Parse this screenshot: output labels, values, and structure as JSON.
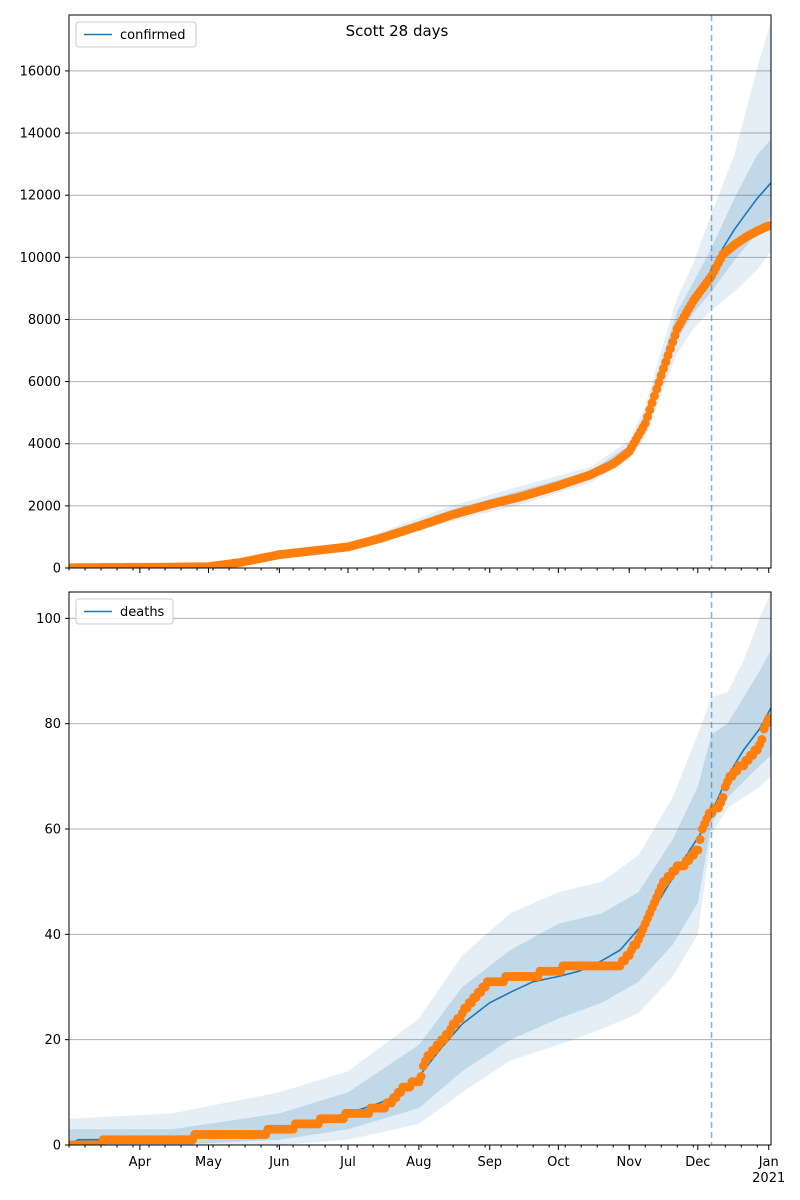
{
  "figure": {
    "title": "Scott 28 days"
  },
  "chart_data": [
    {
      "type": "line",
      "panel": "top",
      "title": "Scott 28 days",
      "legend": {
        "entries": [
          "confirmed"
        ],
        "placement": "top-left"
      },
      "ylim": [
        0,
        17800
      ],
      "y_ticks": [
        0,
        2000,
        4000,
        6000,
        8000,
        10000,
        12000,
        14000,
        16000
      ],
      "grid": "y",
      "forecast_start": "2020-12-07",
      "series": [
        {
          "name": "confirmed",
          "role": "model median",
          "color": "#1f77b4",
          "x": [
            "2020-03-01",
            "2020-04-01",
            "2020-05-01",
            "2020-05-15",
            "2020-06-01",
            "2020-07-01",
            "2020-07-15",
            "2020-08-01",
            "2020-08-15",
            "2020-09-01",
            "2020-09-15",
            "2020-10-01",
            "2020-10-15",
            "2020-10-25",
            "2020-11-01",
            "2020-11-08",
            "2020-11-15",
            "2020-11-22",
            "2020-11-29",
            "2020-12-04",
            "2020-12-07",
            "2020-12-12",
            "2020-12-17",
            "2020-12-22",
            "2020-12-27",
            "2021-01-02"
          ],
          "values": [
            20,
            30,
            50,
            150,
            420,
            680,
            950,
            1380,
            1750,
            2100,
            2350,
            2650,
            3000,
            3350,
            3800,
            4700,
            6300,
            7800,
            8700,
            9200,
            9500,
            10300,
            10900,
            11400,
            11900,
            12400
          ]
        },
        {
          "name": "observed",
          "role": "observed data points",
          "color": "#ff7f0e",
          "x": [
            "2020-03-01",
            "2020-04-01",
            "2020-05-01",
            "2020-05-15",
            "2020-06-01",
            "2020-07-01",
            "2020-07-15",
            "2020-08-01",
            "2020-08-15",
            "2020-09-01",
            "2020-09-15",
            "2020-10-01",
            "2020-10-15",
            "2020-10-25",
            "2020-11-01",
            "2020-11-08",
            "2020-11-15",
            "2020-11-22",
            "2020-11-29",
            "2020-12-04",
            "2020-12-07",
            "2020-12-12",
            "2020-12-17",
            "2020-12-22",
            "2020-12-27",
            "2021-01-02"
          ],
          "values": [
            10,
            20,
            40,
            180,
            430,
            680,
            950,
            1350,
            1700,
            2050,
            2300,
            2650,
            3000,
            3350,
            3750,
            4650,
            6200,
            7700,
            8600,
            9100,
            9400,
            10100,
            10400,
            10650,
            10850,
            11050
          ]
        }
      ],
      "bands": {
        "x": [
          "2020-03-01",
          "2020-05-01",
          "2020-07-01",
          "2020-08-15",
          "2020-09-15",
          "2020-10-15",
          "2020-11-01",
          "2020-11-08",
          "2020-11-15",
          "2020-11-22",
          "2020-11-29",
          "2020-12-07",
          "2020-12-17",
          "2020-12-27",
          "2021-01-02"
        ],
        "outer_low": [
          0,
          20,
          620,
          1500,
          2050,
          2750,
          3500,
          4200,
          5600,
          6900,
          7700,
          8300,
          8900,
          9600,
          10200
        ],
        "outer_high": [
          60,
          100,
          760,
          2000,
          2650,
          3250,
          4100,
          5200,
          7000,
          8700,
          9800,
          11400,
          13300,
          16100,
          17600
        ],
        "inner_low": [
          5,
          35,
          660,
          1630,
          2200,
          2880,
          3650,
          4450,
          5950,
          7350,
          8200,
          8900,
          9900,
          10800,
          11300
        ],
        "inner_high": [
          40,
          70,
          720,
          1870,
          2500,
          3120,
          3950,
          4950,
          6650,
          8250,
          9200,
          10300,
          11900,
          13300,
          13800
        ]
      }
    },
    {
      "type": "line",
      "panel": "bottom",
      "legend": {
        "entries": [
          "deaths"
        ],
        "placement": "top-left"
      },
      "ylim": [
        0,
        105
      ],
      "y_ticks": [
        0,
        20,
        40,
        60,
        80,
        100
      ],
      "grid": "y",
      "forecast_start": "2020-12-07",
      "series": [
        {
          "name": "deaths",
          "role": "model median",
          "color": "#1f77b4",
          "x": [
            "2020-03-01",
            "2020-03-05",
            "2020-04-15",
            "2020-05-05",
            "2020-05-20",
            "2020-06-01",
            "2020-06-10",
            "2020-06-20",
            "2020-07-01",
            "2020-07-15",
            "2020-07-25",
            "2020-08-01",
            "2020-08-10",
            "2020-08-20",
            "2020-09-01",
            "2020-09-10",
            "2020-09-20",
            "2020-10-01",
            "2020-10-10",
            "2020-10-20",
            "2020-10-28",
            "2020-11-05",
            "2020-11-12",
            "2020-11-19",
            "2020-11-26",
            "2020-12-02",
            "2020-12-07",
            "2020-12-14",
            "2020-12-21",
            "2020-12-28",
            "2021-01-02"
          ],
          "values": [
            0,
            1,
            1,
            2,
            2,
            3,
            4,
            5,
            6,
            8,
            10,
            13,
            18,
            23,
            27,
            29,
            31,
            32,
            33,
            35,
            37,
            41,
            45,
            50,
            55,
            59,
            63,
            70,
            75,
            79,
            83
          ]
        },
        {
          "name": "observed",
          "role": "observed data points",
          "color": "#ff7f0e",
          "x": [
            "2020-03-01",
            "2020-03-30",
            "2020-05-21",
            "2020-06-13",
            "2020-07-16",
            "2020-07-20",
            "2020-07-25",
            "2020-08-01",
            "2020-08-05",
            "2020-08-10",
            "2020-08-15",
            "2020-08-20",
            "2020-08-25",
            "2020-09-01",
            "2020-09-15",
            "2020-10-01",
            "2020-10-05",
            "2020-10-28",
            "2020-11-01",
            "2020-11-05",
            "2020-11-10",
            "2020-11-15",
            "2020-11-20",
            "2020-11-27",
            "2020-12-01",
            "2020-12-03",
            "2020-12-06",
            "2020-12-10",
            "2020-12-15",
            "2020-12-20",
            "2020-12-25",
            "2020-12-28",
            "2021-01-01"
          ],
          "values": [
            0,
            1,
            2,
            4,
            7,
            8,
            11,
            12,
            17,
            19,
            22,
            25,
            28,
            31,
            32,
            33,
            34,
            34,
            36,
            39,
            44,
            49,
            52,
            54,
            56,
            60,
            63,
            64,
            70,
            72,
            74,
            76,
            81
          ]
        }
      ],
      "bands": {
        "x": [
          "2020-03-01",
          "2020-04-15",
          "2020-06-01",
          "2020-07-01",
          "2020-08-01",
          "2020-08-20",
          "2020-09-10",
          "2020-10-01",
          "2020-10-20",
          "2020-11-05",
          "2020-11-20",
          "2020-12-01",
          "2020-12-07",
          "2020-12-14",
          "2020-12-21",
          "2020-12-28",
          "2021-01-02"
        ],
        "outer_low": [
          0,
          0,
          0,
          1,
          4,
          10,
          16,
          19,
          22,
          25,
          32,
          40,
          59,
          64,
          66,
          68,
          70
        ],
        "outer_high": [
          5,
          6,
          10,
          14,
          24,
          36,
          44,
          48,
          50,
          55,
          66,
          78,
          85,
          86,
          92,
          100,
          105
        ],
        "inner_low": [
          0,
          0,
          1,
          3,
          7,
          14,
          20,
          24,
          27,
          31,
          38,
          46,
          61,
          66,
          69,
          72,
          74
        ],
        "inner_high": [
          3,
          3,
          6,
          10,
          19,
          30,
          37,
          42,
          44,
          48,
          58,
          68,
          78,
          80,
          85,
          90,
          94
        ]
      }
    }
  ],
  "x_axis": {
    "ticks": [
      {
        "date": "2020-04-01",
        "label": "Apr"
      },
      {
        "date": "2020-05-01",
        "label": "May"
      },
      {
        "date": "2020-06-01",
        "label": "Jun"
      },
      {
        "date": "2020-07-01",
        "label": "Jul"
      },
      {
        "date": "2020-08-01",
        "label": "Aug"
      },
      {
        "date": "2020-09-01",
        "label": "Sep"
      },
      {
        "date": "2020-10-01",
        "label": "Oct"
      },
      {
        "date": "2020-11-01",
        "label": "Nov"
      },
      {
        "date": "2020-12-01",
        "label": "Dec"
      },
      {
        "date": "2021-01-01",
        "label": "Jan",
        "sublabel": "2021"
      }
    ],
    "range": [
      "2020-03-01",
      "2021-01-02"
    ]
  },
  "colors": {
    "model": "#1f77b4",
    "observed": "#ff7f0e",
    "grid": "#b0b0b0"
  }
}
